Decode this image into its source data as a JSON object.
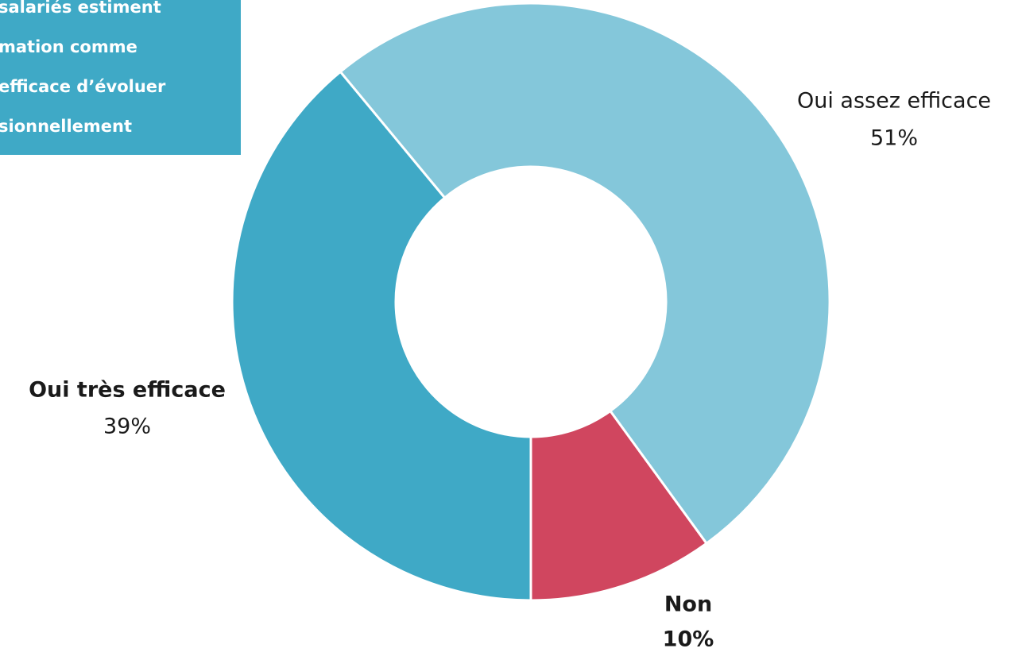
{
  "chart_data": {
    "type": "donut",
    "title_lines": [
      "salariés estiment",
      "mation comme",
      "efficace d’évoluer",
      "sionnellement"
    ],
    "categories": [
      "Oui très efficace",
      "Oui assez efficace",
      "Non"
    ],
    "values": [
      39,
      51,
      10
    ],
    "value_labels": [
      "39%",
      "51%",
      "10%"
    ],
    "colors": [
      "#3fa9c6",
      "#84c7da",
      "#d0465f"
    ],
    "title_box_color": "#3fa9c6"
  }
}
